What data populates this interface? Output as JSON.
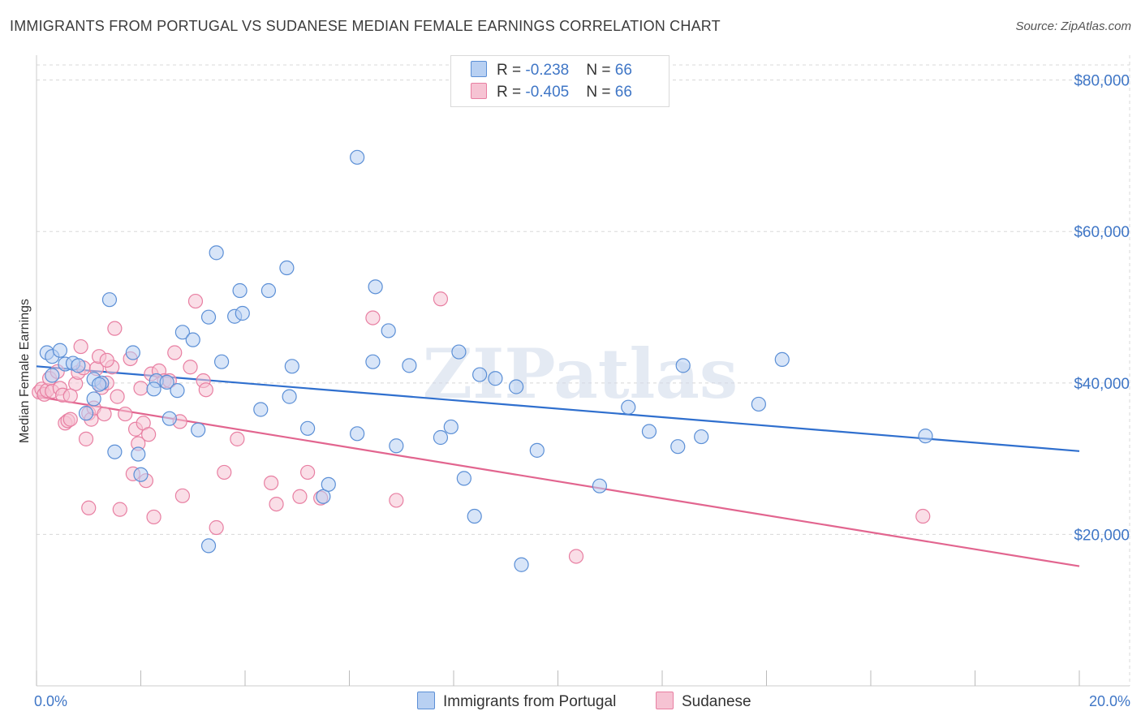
{
  "title": "IMMIGRANTS FROM PORTUGAL VS SUDANESE MEDIAN FEMALE EARNINGS CORRELATION CHART",
  "source": "Source: ZipAtlas.com",
  "watermark": "ZIPatlas",
  "legend_top": {
    "rows": [
      {
        "r_label": "R = ",
        "r_value": "-0.238",
        "n_label": "N = ",
        "n_value": "66"
      },
      {
        "r_label": "R = ",
        "r_value": "-0.405",
        "n_label": "N = ",
        "n_value": "66"
      }
    ]
  },
  "colors": {
    "blue_fill": "#b8d0f2",
    "blue_stroke": "#5b8fd6",
    "blue_line": "#2f6fce",
    "pink_fill": "#f6c3d3",
    "pink_stroke": "#e87fa2",
    "pink_line": "#e2658f",
    "grid": "#d8d8d8",
    "axis_text": "#3f76c6"
  },
  "chart_data": {
    "type": "scatter",
    "title": "IMMIGRANTS FROM PORTUGAL VS SUDANESE MEDIAN FEMALE EARNINGS CORRELATION CHART",
    "xlabel": "",
    "ylabel": "Median Female Earnings",
    "xlim": [
      0,
      20
    ],
    "ylim": [
      0,
      82000
    ],
    "x_tick_labels": [
      "0.0%",
      "20.0%"
    ],
    "y_ticks": [
      20000,
      40000,
      60000,
      80000
    ],
    "y_tick_labels": [
      "$20,000",
      "$40,000",
      "$60,000",
      "$80,000"
    ],
    "grid": true,
    "series": [
      {
        "name": "Immigrants from Portugal",
        "r": -0.238,
        "n": 66,
        "trend": {
          "x0": 0,
          "y0": 42200,
          "x1": 20,
          "y1": 31000
        },
        "points": [
          [
            0.2,
            44000
          ],
          [
            0.3,
            43500
          ],
          [
            0.45,
            44300
          ],
          [
            0.55,
            42500
          ],
          [
            0.7,
            42600
          ],
          [
            0.8,
            42300
          ],
          [
            0.3,
            41000
          ],
          [
            1.1,
            40500
          ],
          [
            1.25,
            40000
          ],
          [
            1.2,
            39800
          ],
          [
            0.95,
            36000
          ],
          [
            1.1,
            37900
          ],
          [
            1.4,
            51000
          ],
          [
            1.85,
            44000
          ],
          [
            2.0,
            27900
          ],
          [
            2.3,
            40300
          ],
          [
            2.5,
            40100
          ],
          [
            2.25,
            39200
          ],
          [
            2.7,
            39000
          ],
          [
            2.8,
            46700
          ],
          [
            3.0,
            45700
          ],
          [
            2.55,
            35300
          ],
          [
            3.1,
            33800
          ],
          [
            3.3,
            48700
          ],
          [
            3.45,
            57200
          ],
          [
            3.55,
            42800
          ],
          [
            3.8,
            48800
          ],
          [
            3.9,
            52200
          ],
          [
            3.95,
            49200
          ],
          [
            4.3,
            36500
          ],
          [
            4.45,
            52200
          ],
          [
            4.8,
            55200
          ],
          [
            4.85,
            38200
          ],
          [
            4.9,
            42200
          ],
          [
            5.2,
            34000
          ],
          [
            5.5,
            25000
          ],
          [
            5.6,
            26600
          ],
          [
            6.15,
            69800
          ],
          [
            6.15,
            33300
          ],
          [
            6.45,
            42800
          ],
          [
            6.5,
            52700
          ],
          [
            6.75,
            46900
          ],
          [
            6.9,
            31700
          ],
          [
            7.15,
            42300
          ],
          [
            7.75,
            32800
          ],
          [
            7.95,
            34200
          ],
          [
            8.1,
            44100
          ],
          [
            8.2,
            27400
          ],
          [
            8.4,
            22400
          ],
          [
            8.5,
            41100
          ],
          [
            8.8,
            40600
          ],
          [
            9.2,
            39500
          ],
          [
            9.6,
            31100
          ],
          [
            9.3,
            16000
          ],
          [
            1.5,
            30900
          ],
          [
            1.95,
            30600
          ],
          [
            3.3,
            18500
          ],
          [
            10.8,
            26400
          ],
          [
            11.35,
            36800
          ],
          [
            11.75,
            33600
          ],
          [
            12.3,
            31600
          ],
          [
            12.4,
            42300
          ],
          [
            12.75,
            32900
          ],
          [
            13.85,
            37200
          ],
          [
            14.3,
            43100
          ],
          [
            17.05,
            33000
          ]
        ]
      },
      {
        "name": "Sudanese",
        "r": -0.405,
        "n": 66,
        "trend": {
          "x0": 0,
          "y0": 38200,
          "x1": 20,
          "y1": 15800
        },
        "points": [
          [
            0.05,
            38800
          ],
          [
            0.1,
            39200
          ],
          [
            0.15,
            38500
          ],
          [
            0.2,
            39000
          ],
          [
            0.25,
            40600
          ],
          [
            0.3,
            38900
          ],
          [
            0.4,
            41500
          ],
          [
            0.45,
            39300
          ],
          [
            0.5,
            38400
          ],
          [
            0.55,
            34700
          ],
          [
            0.6,
            35000
          ],
          [
            0.65,
            35200
          ],
          [
            0.75,
            39900
          ],
          [
            0.8,
            41400
          ],
          [
            0.85,
            44800
          ],
          [
            0.9,
            42000
          ],
          [
            0.95,
            32600
          ],
          [
            1.0,
            36000
          ],
          [
            1.05,
            35200
          ],
          [
            1.1,
            36700
          ],
          [
            1.15,
            41900
          ],
          [
            1.2,
            43500
          ],
          [
            1.25,
            39400
          ],
          [
            1.3,
            35900
          ],
          [
            1.35,
            40000
          ],
          [
            1.45,
            42100
          ],
          [
            1.5,
            47200
          ],
          [
            1.55,
            38200
          ],
          [
            1.6,
            23300
          ],
          [
            1.7,
            35900
          ],
          [
            1.8,
            43200
          ],
          [
            1.85,
            28000
          ],
          [
            1.9,
            33900
          ],
          [
            1.95,
            32000
          ],
          [
            2.0,
            39300
          ],
          [
            2.05,
            34700
          ],
          [
            2.1,
            27100
          ],
          [
            2.15,
            33200
          ],
          [
            2.2,
            41200
          ],
          [
            2.25,
            22300
          ],
          [
            2.35,
            41600
          ],
          [
            2.45,
            40300
          ],
          [
            2.55,
            40300
          ],
          [
            2.65,
            44000
          ],
          [
            2.75,
            34900
          ],
          [
            2.8,
            25100
          ],
          [
            2.95,
            42100
          ],
          [
            3.05,
            50800
          ],
          [
            3.2,
            40300
          ],
          [
            3.25,
            39100
          ],
          [
            3.45,
            20900
          ],
          [
            3.6,
            28200
          ],
          [
            3.85,
            32600
          ],
          [
            4.5,
            26800
          ],
          [
            4.6,
            24000
          ],
          [
            5.05,
            25000
          ],
          [
            5.2,
            28200
          ],
          [
            5.45,
            24800
          ],
          [
            6.45,
            48600
          ],
          [
            6.9,
            24500
          ],
          [
            7.75,
            51100
          ],
          [
            10.35,
            17100
          ],
          [
            17.0,
            22400
          ],
          [
            1.0,
            23500
          ],
          [
            0.65,
            38300
          ],
          [
            1.35,
            43000
          ]
        ]
      }
    ]
  }
}
